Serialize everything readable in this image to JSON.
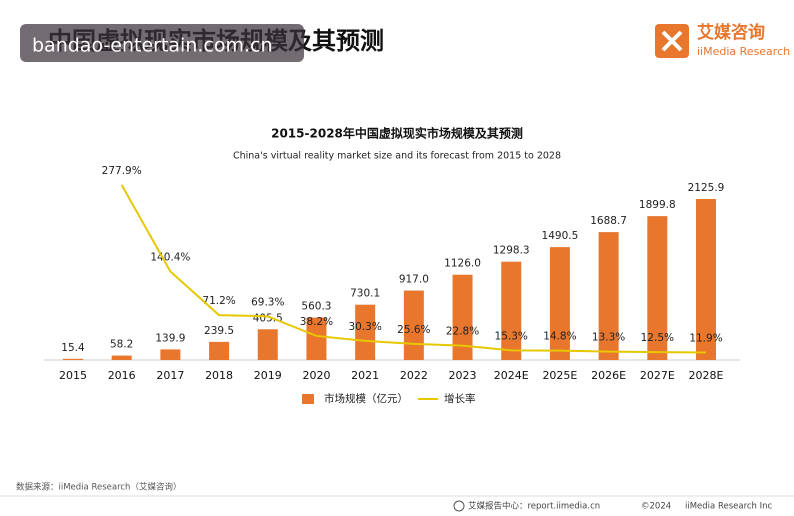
{
  "header": {
    "title": "中国虚拟现实市场规模及其预测",
    "watermark": "bandao-entertain.com.cn",
    "logo_cn": "艾媒咨询",
    "logo_en": "iiMedia Research"
  },
  "chart_data": {
    "type": "bar",
    "title": "2015-2028年中国虚拟现实市场规模及其预测",
    "subtitle": "China's virtual reality market size and its forecast from 2015 to 2028",
    "categories": [
      "2015",
      "2016",
      "2017",
      "2018",
      "2019",
      "2020",
      "2021",
      "2022",
      "2023",
      "2024E",
      "2025E",
      "2026E",
      "2027E",
      "2028E"
    ],
    "series": [
      {
        "name": "市场规模（亿元）",
        "color": "#e8762d",
        "type": "bar",
        "values": [
          15.4,
          58.2,
          139.9,
          239.5,
          405.5,
          560.3,
          730.1,
          917.0,
          1126.0,
          1298.3,
          1490.5,
          1688.7,
          1899.8,
          2125.9
        ],
        "value_labels": [
          "15.4",
          "58.2",
          "139.9",
          "239.5",
          "405.5",
          "560.3",
          "730.1",
          "917.0",
          "1126.0",
          "1298.3",
          "1490.5",
          "1688.7",
          "1899.8",
          "2125.9"
        ]
      },
      {
        "name": "增长率",
        "color": "#e6c700",
        "type": "line",
        "values": [
          null,
          277.9,
          140.4,
          71.2,
          69.3,
          38.2,
          30.3,
          25.6,
          22.8,
          15.3,
          14.8,
          13.3,
          12.5,
          11.9
        ],
        "value_labels": [
          null,
          "277.9%",
          "140.4%",
          "71.2%",
          "69.3%",
          "38.2%",
          "30.3%",
          "25.6%",
          "22.8%",
          "15.3%",
          "14.8%",
          "13.3%",
          "12.5%",
          "11.9%"
        ]
      }
    ]
  },
  "source": "数据来源：iiMedia Research（艾媒咨询）",
  "footer": {
    "center": "艾媒报告中心：report.iimedia.cn",
    "copyright": "©2024",
    "company": "iiMedia Research Inc"
  }
}
